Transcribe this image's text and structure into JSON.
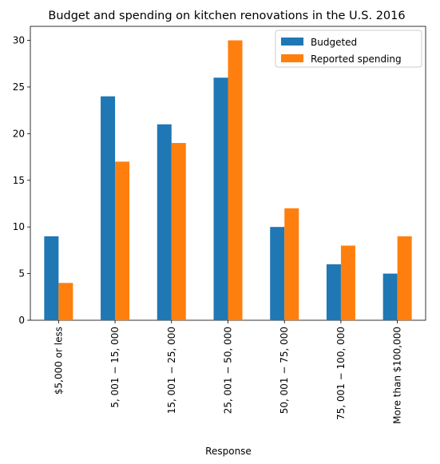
{
  "chart_data": {
    "type": "bar",
    "title": "Budget and spending on kitchen renovations in the U.S. 2016",
    "xlabel": "Response",
    "ylabel": "",
    "categories": [
      "$5,000 or less",
      "$5,001 - $15,000",
      "$15,001 - $25,000",
      "$25,001 - $50,000",
      "$50,001 - $75,000",
      "$75,001 - $100,000",
      "More than $100,000"
    ],
    "category_labels_rendered": [
      "$5,000 or less",
      "5, 001 − 15, 000",
      "15, 001 − 25, 000",
      "25, 001 − 50, 000",
      "50, 001 − 75, 000",
      "75, 001 − 100, 000",
      "More than $100,000"
    ],
    "series": [
      {
        "name": "Budgeted",
        "color": "#1f77b4",
        "values": [
          9,
          24,
          21,
          26,
          10,
          6,
          5
        ]
      },
      {
        "name": "Reported spending",
        "color": "#ff7f0e",
        "values": [
          4,
          17,
          19,
          30,
          12,
          8,
          9
        ]
      }
    ],
    "ylim": [
      0,
      31.5
    ],
    "yticks": [
      0,
      5,
      10,
      15,
      20,
      25,
      30
    ],
    "grid": false,
    "legend_position": "top-right"
  }
}
